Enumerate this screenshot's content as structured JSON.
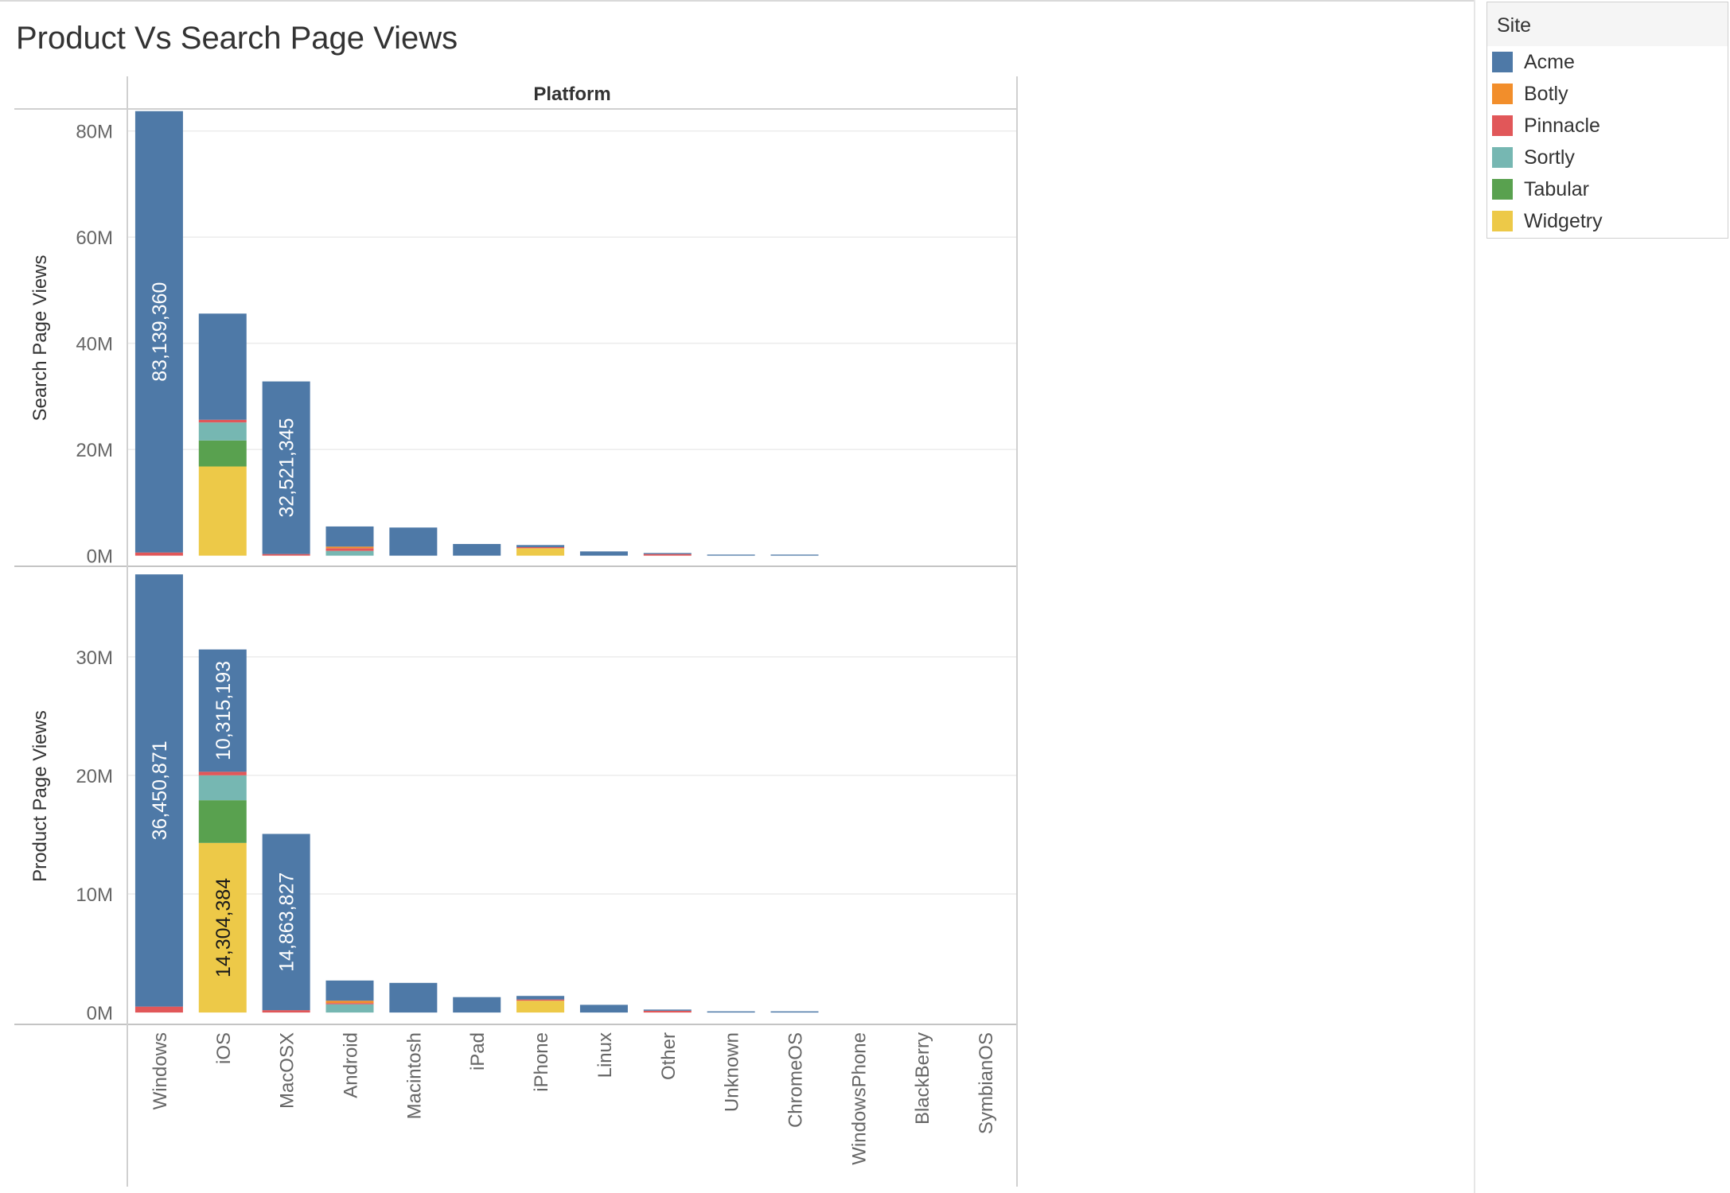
{
  "page": {
    "title": "Product Vs Search Page Views"
  },
  "legend": {
    "title": "Site",
    "items": [
      {
        "label": "Acme",
        "color": "#4e79a7"
      },
      {
        "label": "Botly",
        "color": "#f28e2b"
      },
      {
        "label": "Pinnacle",
        "color": "#e15759"
      },
      {
        "label": "Sortly",
        "color": "#76b7b2"
      },
      {
        "label": "Tabular",
        "color": "#59a14f"
      },
      {
        "label": "Widgetry",
        "color": "#edc948"
      }
    ]
  },
  "chart_data": {
    "type": "bar",
    "stacked": true,
    "column_header": "Platform",
    "categories": [
      "Windows",
      "iOS",
      "MacOSX",
      "Android",
      "Macintosh",
      "iPad",
      "iPhone",
      "Linux",
      "Other",
      "Unknown",
      "ChromeOS",
      "WindowsPhone",
      "BlackBerry",
      "SymbianOS"
    ],
    "series_names": [
      "Acme",
      "Botly",
      "Pinnacle",
      "Sortly",
      "Tabular",
      "Widgetry"
    ],
    "series_colors": [
      "#4e79a7",
      "#f28e2b",
      "#e15759",
      "#76b7b2",
      "#59a14f",
      "#edc948"
    ],
    "grid": true,
    "panels": [
      {
        "measure": "Search Page Views",
        "ylabel": "Search Page Views",
        "ylim": [
          -2000000,
          84000000
        ],
        "yticks": [
          0,
          20000000,
          40000000,
          60000000,
          80000000
        ],
        "ytick_labels": [
          "0M",
          "20M",
          "40M",
          "60M",
          "80M"
        ],
        "stacks": {
          "Windows": {
            "Widgetry": 0,
            "Tabular": 0,
            "Sortly": 0,
            "Pinnacle": 600000,
            "Botly": 0,
            "Acme": 83139360
          },
          "iOS": {
            "Widgetry": 16800000,
            "Tabular": 4900000,
            "Sortly": 3400000,
            "Pinnacle": 500000,
            "Botly": 0,
            "Acme": 20000000
          },
          "MacOSX": {
            "Widgetry": 0,
            "Tabular": 0,
            "Sortly": 0,
            "Pinnacle": 300000,
            "Botly": 0,
            "Acme": 32521345
          },
          "Android": {
            "Widgetry": 0,
            "Tabular": 0,
            "Sortly": 900000,
            "Pinnacle": 500000,
            "Botly": 300000,
            "Acme": 3800000
          },
          "Macintosh": {
            "Acme": 5300000
          },
          "iPad": {
            "Acme": 2200000
          },
          "iPhone": {
            "Widgetry": 1400000,
            "Pinnacle": 200000,
            "Acme": 400000
          },
          "Linux": {
            "Acme": 800000
          },
          "Other": {
            "Pinnacle": 300000,
            "Acme": 200000
          },
          "Unknown": {
            "Acme": 200000
          },
          "ChromeOS": {
            "Acme": 200000
          },
          "WindowsPhone": {
            "Acme": 0
          },
          "BlackBerry": {
            "Acme": 0
          },
          "SymbianOS": {
            "Acme": 0
          }
        },
        "data_labels": [
          {
            "category": "Windows",
            "series": "Acme",
            "text": "83,139,360",
            "dark": false
          },
          {
            "category": "MacOSX",
            "series": "Acme",
            "text": "32,521,345",
            "dark": false
          }
        ]
      },
      {
        "measure": "Product Page Views",
        "ylabel": "Product Page Views",
        "ylim": [
          -1000000,
          37500000
        ],
        "yticks": [
          0,
          10000000,
          20000000,
          30000000
        ],
        "ytick_labels": [
          "0M",
          "10M",
          "20M",
          "30M"
        ],
        "stacks": {
          "Windows": {
            "Widgetry": 0,
            "Tabular": 0,
            "Sortly": 0,
            "Pinnacle": 500000,
            "Botly": 0,
            "Acme": 36450871
          },
          "iOS": {
            "Widgetry": 14304384,
            "Tabular": 3600000,
            "Sortly": 2100000,
            "Pinnacle": 300000,
            "Botly": 0,
            "Acme": 10315193
          },
          "MacOSX": {
            "Widgetry": 0,
            "Tabular": 0,
            "Sortly": 0,
            "Pinnacle": 200000,
            "Botly": 0,
            "Acme": 14863827
          },
          "Android": {
            "Sortly": 700000,
            "Pinnacle": 100000,
            "Botly": 200000,
            "Acme": 1700000
          },
          "Macintosh": {
            "Acme": 2500000
          },
          "iPad": {
            "Acme": 1300000
          },
          "iPhone": {
            "Widgetry": 1000000,
            "Pinnacle": 100000,
            "Acme": 300000
          },
          "Linux": {
            "Acme": 650000
          },
          "Other": {
            "Pinnacle": 150000,
            "Acme": 100000
          },
          "Unknown": {
            "Acme": 100000
          },
          "ChromeOS": {
            "Acme": 100000
          },
          "WindowsPhone": {
            "Acme": 0
          },
          "BlackBerry": {
            "Acme": 0
          },
          "SymbianOS": {
            "Acme": 0
          }
        },
        "data_labels": [
          {
            "category": "Windows",
            "series": "Acme",
            "text": "36,450,871",
            "dark": false
          },
          {
            "category": "iOS",
            "series": "Acme",
            "text": "10,315,193",
            "dark": false
          },
          {
            "category": "iOS",
            "series": "Widgetry",
            "text": "14,304,384",
            "dark": true
          },
          {
            "category": "MacOSX",
            "series": "Acme",
            "text": "14,863,827",
            "dark": false
          }
        ]
      }
    ]
  }
}
